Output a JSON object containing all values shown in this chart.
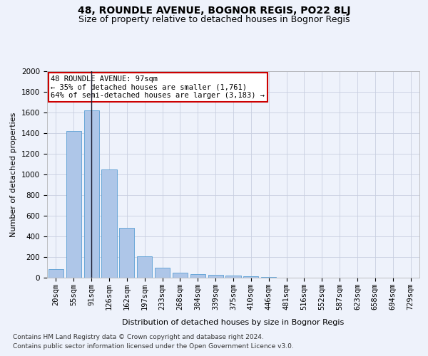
{
  "title1": "48, ROUNDLE AVENUE, BOGNOR REGIS, PO22 8LJ",
  "title2": "Size of property relative to detached houses in Bognor Regis",
  "xlabel": "Distribution of detached houses by size in Bognor Regis",
  "ylabel": "Number of detached properties",
  "categories": [
    "20sqm",
    "55sqm",
    "91sqm",
    "126sqm",
    "162sqm",
    "197sqm",
    "233sqm",
    "268sqm",
    "304sqm",
    "339sqm",
    "375sqm",
    "410sqm",
    "446sqm",
    "481sqm",
    "516sqm",
    "552sqm",
    "587sqm",
    "623sqm",
    "658sqm",
    "694sqm",
    "729sqm"
  ],
  "values": [
    80,
    1420,
    1620,
    1050,
    480,
    205,
    100,
    48,
    35,
    25,
    20,
    15,
    10,
    0,
    0,
    0,
    0,
    0,
    0,
    0,
    0
  ],
  "bar_color": "#aec6e8",
  "bar_edge_color": "#5a9fd4",
  "vline_x_index": 2,
  "vline_color": "#1a1a2e",
  "annotation_box_text": "48 ROUNDLE AVENUE: 97sqm\n← 35% of detached houses are smaller (1,761)\n64% of semi-detached houses are larger (3,183) →",
  "annotation_box_color": "#ffffff",
  "annotation_box_edge_color": "#cc0000",
  "ylim": [
    0,
    2000
  ],
  "yticks": [
    0,
    200,
    400,
    600,
    800,
    1000,
    1200,
    1400,
    1600,
    1800,
    2000
  ],
  "footnote1": "Contains HM Land Registry data © Crown copyright and database right 2024.",
  "footnote2": "Contains public sector information licensed under the Open Government Licence v3.0.",
  "bg_color": "#eef2fb",
  "plot_bg_color": "#eef2fb",
  "grid_color": "#c8cfe0",
  "title1_fontsize": 10,
  "title2_fontsize": 9,
  "axis_label_fontsize": 8,
  "tick_fontsize": 7.5,
  "footnote_fontsize": 6.5,
  "annot_fontsize": 7.5
}
